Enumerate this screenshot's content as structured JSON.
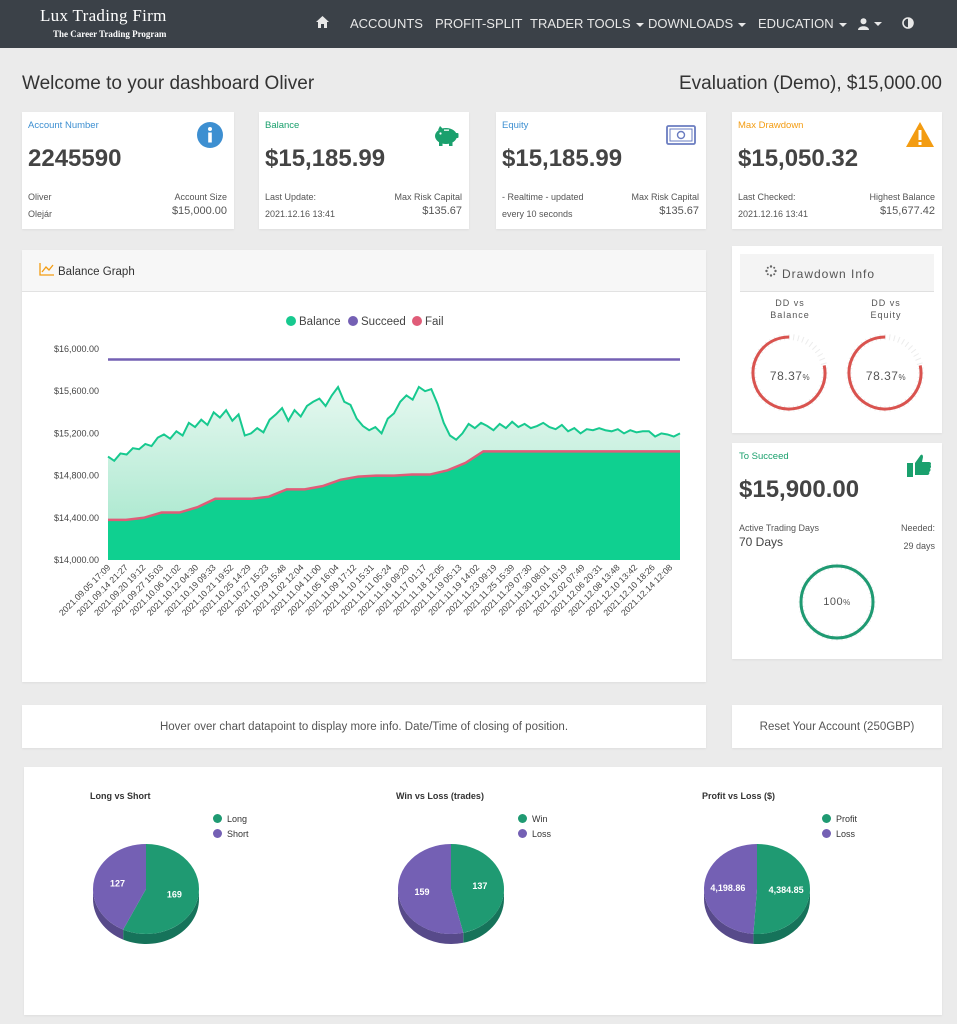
{
  "nav": {
    "brand_title": "Lux Trading Firm",
    "brand_sub": "The Career Trading Program",
    "items": [
      "ACCOUNTS",
      "PROFIT-SPLIT",
      "TRADER TOOLS",
      "DOWNLOADS",
      "EDUCATION"
    ]
  },
  "header": {
    "welcome": "Welcome to your dashboard Oliver",
    "evaluation": "Evaluation (Demo), $15,000.00"
  },
  "cards": [
    {
      "label": "Account Number",
      "value": "2245590",
      "l1": "Oliver",
      "l2": "Olejár",
      "r1": "Account Size",
      "r2": "$15,000.00",
      "color": "#3d8fd1",
      "icon": "info-icon"
    },
    {
      "label": "Balance",
      "value": "$15,185.99",
      "l1": "Last Update:",
      "l2": "2021.12.16 13:41",
      "r1": "Max Risk Capital",
      "r2": "$135.67",
      "color": "#1aa06d",
      "icon": "piggy-bank-icon"
    },
    {
      "label": "Equity",
      "value": "$15,185.99",
      "l1": "- Realtime - updated",
      "l2": "every 10 seconds",
      "r1": "Max Risk Capital",
      "r2": "$135.67",
      "color": "#3d8fd1",
      "icon": "money-icon"
    },
    {
      "label": "Max Drawdown",
      "value": "$15,050.32",
      "l1": "Last Checked:",
      "l2": "2021.12.16 13:41",
      "r1": "Highest Balance",
      "r2": "$15,677.42",
      "color": "#f39c12",
      "icon": "warning-icon"
    }
  ],
  "balance_graph": {
    "title": "Balance Graph",
    "legend": [
      "Balance",
      "Succeed",
      "Fail"
    ],
    "hover_info": "Hover over chart datapoint to display more info. Date/Time of closing of position."
  },
  "chart_data": {
    "type": "area",
    "y_ticks": [
      "$16,000.00",
      "$15,600.00",
      "$15,200.00",
      "$14,800.00",
      "$14,400.00",
      "$14,000.00"
    ],
    "ylim": [
      14000,
      16000
    ],
    "x_tick_labels": [
      "2021.09.05 17:09",
      "2021.09.14 21:27",
      "2021.09.20 19:12",
      "2021.09.27 15:03",
      "2021.10.06 11:02",
      "2021.10.12 04:30",
      "2021.10.19 09:33",
      "2021.10.21 19:52",
      "2021.10.25 14:29",
      "2021.10.27 15:23",
      "2021.10.29 15:48",
      "2021.11.02 12:04",
      "2021.11.04 11:00",
      "2021.11.05 16:04",
      "2021.11.09 17:12",
      "2021.11.10 15:31",
      "2021.11.11 05:24",
      "2021.11.16 09:20",
      "2021.11.17 01:17",
      "2021.11.18 12:05",
      "2021.11.19 05:13",
      "2021.11.19 14:02",
      "2021.11.23 09:19",
      "2021.11.25 15:39",
      "2021.11.29 07:30",
      "2021.11.30 08:01",
      "2021.12.01 10:19",
      "2021.12.02 07:49",
      "2021.12.06 20:31",
      "2021.12.08 13:48",
      "2021.12.10 13:42",
      "2021.12.10 18:26",
      "2021.12.14 12:08"
    ],
    "series": [
      {
        "name": "Balance",
        "color": "#17c98f",
        "values": [
          14980,
          14940,
          15010,
          15000,
          15060,
          15050,
          15100,
          15080,
          15160,
          15190,
          15150,
          15220,
          15180,
          15300,
          15260,
          15330,
          15280,
          15400,
          15350,
          15420,
          15320,
          15380,
          15180,
          15200,
          15250,
          15210,
          15330,
          15380,
          15440,
          15320,
          15420,
          15360,
          15460,
          15500,
          15530,
          15460,
          15560,
          15640,
          15500,
          15470,
          15340,
          15270,
          15230,
          15260,
          15200,
          15340,
          15390,
          15500,
          15560,
          15520,
          15640,
          15600,
          15620,
          15480,
          15300,
          15180,
          15140,
          15200,
          15290,
          15250,
          15300,
          15270,
          15230,
          15290,
          15250,
          15310,
          15260,
          15290,
          15250,
          15270,
          15300,
          15260,
          15240,
          15280,
          15220,
          15250,
          15200,
          15240,
          15230,
          15250,
          15230,
          15220,
          15240,
          15200,
          15230,
          15210,
          15220,
          15220,
          15170,
          15200,
          15190,
          15170,
          15200
        ]
      },
      {
        "name": "Succeed",
        "color": "#7460b4",
        "values": [
          15900,
          15900
        ]
      },
      {
        "name": "Fail",
        "color": "#e05c78",
        "values": [
          14380,
          14380,
          14400,
          14450,
          14450,
          14500,
          14580,
          14580,
          14580,
          14600,
          14670,
          14670,
          14700,
          14760,
          14790,
          14800,
          14800,
          14810,
          14810,
          14850,
          14920,
          15030,
          15030,
          15030,
          15030,
          15030,
          15030,
          15030,
          15030,
          15030,
          15030,
          15030,
          15030
        ]
      }
    ]
  },
  "drawdown": {
    "title": "Drawdown Info",
    "gauges": [
      {
        "caption_1": "DD vs",
        "caption_2": "Balance",
        "value": "78.37",
        "unit": "%",
        "fraction": 0.7837
      },
      {
        "caption_1": "DD vs",
        "caption_2": "Equity",
        "value": "78.37",
        "unit": "%",
        "fraction": 0.7837
      }
    ]
  },
  "succeed": {
    "label": "To Succeed",
    "value": "$15,900.00",
    "active_label": "Active Trading Days",
    "active_value": "70 Days",
    "needed_label": "Needed:",
    "needed_value": "29 days",
    "progress_value": "100",
    "progress_unit": "%",
    "progress_fraction": 1.0
  },
  "reset": "Reset Your Account (250GBP)",
  "pies": [
    {
      "title": "Long vs Short",
      "labels": [
        "Long",
        "Short"
      ],
      "values": [
        169,
        127
      ],
      "value_labels": [
        "169",
        "127"
      ],
      "colors": [
        "#1f9a72",
        "#7460b4"
      ]
    },
    {
      "title": "Win vs Loss (trades)",
      "labels": [
        "Win",
        "Loss"
      ],
      "values": [
        137,
        159
      ],
      "value_labels": [
        "137",
        "159"
      ],
      "colors": [
        "#1f9a72",
        "#7460b4"
      ]
    },
    {
      "title": "Profit vs Loss ($)",
      "labels": [
        "Profit",
        "Loss"
      ],
      "values": [
        4384.85,
        4198.86
      ],
      "value_labels": [
        "4,384.85",
        "4,198.86"
      ],
      "colors": [
        "#1f9a72",
        "#7460b4"
      ]
    }
  ]
}
